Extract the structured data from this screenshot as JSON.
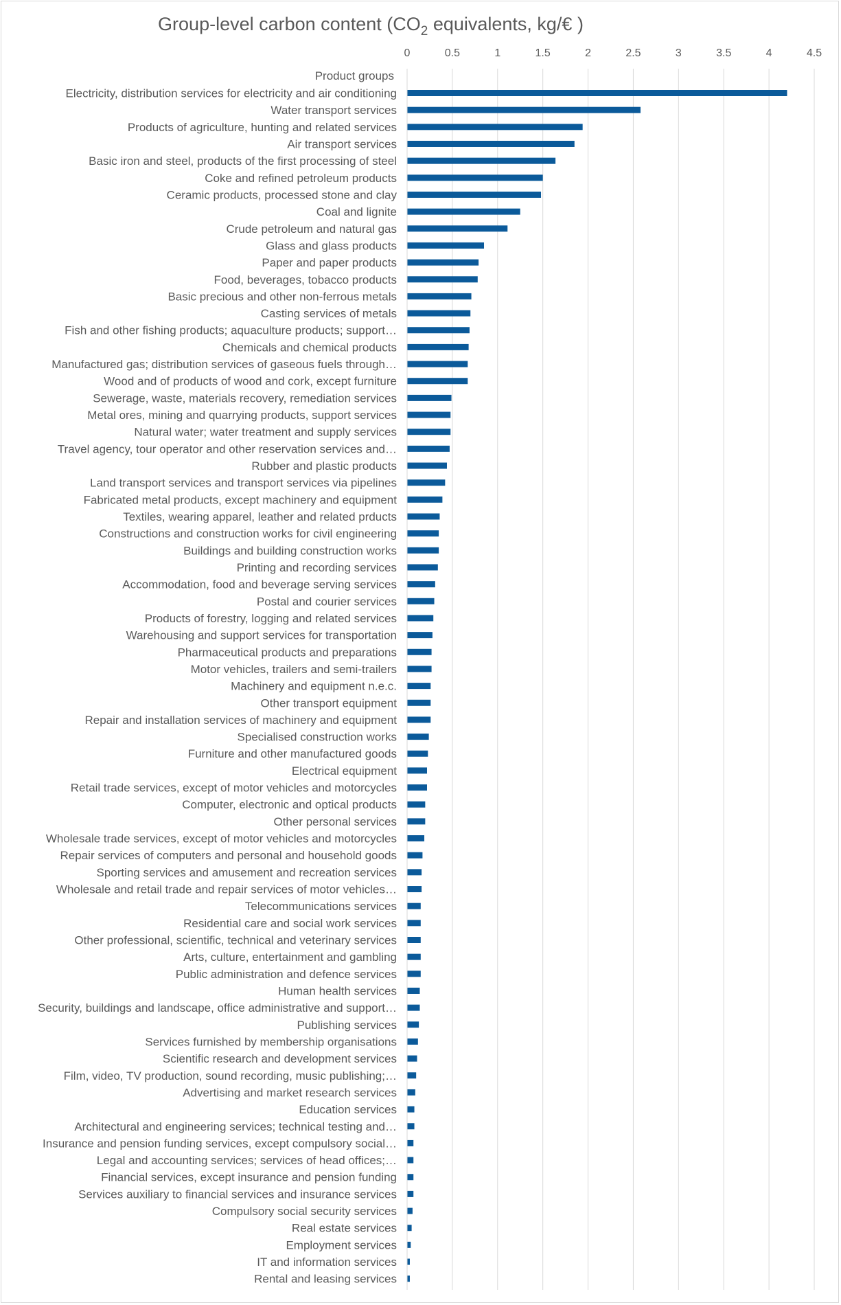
{
  "chart_data": {
    "type": "bar",
    "orientation": "horizontal",
    "title": "Group-level carbon content (CO",
    "title_subscript": "2",
    "title_suffix": " equivalents, kg/€ )",
    "category_header": "Product groups",
    "xlim": [
      0,
      4.5
    ],
    "x_ticks": [
      "0",
      "0.5",
      "1",
      "1.5",
      "2",
      "2.5",
      "3",
      "3.5",
      "4",
      "4.5"
    ],
    "grid": true,
    "legend": "none",
    "colors": {
      "bar": "#0b5a9a",
      "grid": "#d9d9d9",
      "text": "#595959"
    },
    "categories": [
      "Electricity, distribution services for electricity and air conditioning",
      "Water transport services",
      "Products of agriculture, hunting and related services",
      "Air transport services",
      "Basic iron and steel, products of the first processing of steel",
      "Coke and refined petroleum products",
      "Ceramic products, processed stone and clay",
      "Coal and lignite",
      "Crude petroleum and natural gas",
      "Glass and glass products",
      "Paper and paper products",
      "Food, beverages, tobacco products",
      "Basic precious and other non-ferrous metals",
      "Casting services of metals",
      "Fish and other fishing products; aquaculture products; support…",
      "Chemicals and chemical products",
      "Manufactured gas; distribution services of gaseous fuels through…",
      "Wood and of products of wood and cork, except furniture",
      "Sewerage, waste, materials recovery, remediation services",
      "Metal ores, mining and quarrying products, support services",
      "Natural water; water treatment and supply services",
      "Travel agency, tour operator and other reservation services and…",
      "Rubber and plastic products",
      "Land transport services and transport services via pipelines",
      "Fabricated metal products, except machinery and equipment",
      "Textiles, wearing apparel, leather and related prducts",
      "Constructions and construction works for civil engineering",
      "Buildings and building construction works",
      "Printing and recording services",
      "Accommodation, food and beverage serving services",
      "Postal and courier services",
      "Products of forestry, logging and related services",
      "Warehousing and support services for transportation",
      "Pharmaceutical products and preparations",
      "Motor vehicles, trailers and semi-trailers",
      "Machinery and equipment n.e.c.",
      "Other transport equipment",
      "Repair and installation services of machinery and equipment",
      "Specialised construction works",
      "Furniture and other manufactured goods",
      "Electrical equipment",
      "Retail trade services, except of motor vehicles and motorcycles",
      "Computer, electronic and optical products",
      "Other personal services",
      "Wholesale trade services, except of motor vehicles and motorcycles",
      "Repair services of computers and personal and household goods",
      "Sporting services and amusement and recreation services",
      "Wholesale and retail trade and repair services of motor vehicles…",
      "Telecommunications services",
      "Residential care and social work services",
      "Other professional, scientific, technical and veterinary services",
      "Arts, culture, entertainment and gambling",
      "Public administration and defence services",
      "Human health services",
      "Security, buildings and landscape, office administrative and support…",
      "Publishing services",
      "Services furnished by membership organisations",
      "Scientific research and development services",
      "Film, video, TV production, sound recording, music publishing;…",
      "Advertising and market research services",
      "Education services",
      "Architectural and engineering services; technical testing and…",
      "Insurance and pension funding services, except compulsory social…",
      "Legal and accounting services; services of head offices;…",
      "Financial services, except insurance and pension funding",
      "Services auxiliary to financial services and insurance services",
      "Compulsory social security services",
      "Real estate services",
      "Employment services",
      "IT and information services",
      "Rental and leasing services"
    ],
    "values": [
      4.2,
      2.58,
      1.94,
      1.85,
      1.64,
      1.5,
      1.48,
      1.25,
      1.11,
      0.85,
      0.79,
      0.78,
      0.71,
      0.7,
      0.69,
      0.68,
      0.67,
      0.67,
      0.49,
      0.48,
      0.48,
      0.47,
      0.44,
      0.42,
      0.39,
      0.36,
      0.35,
      0.35,
      0.34,
      0.31,
      0.3,
      0.29,
      0.28,
      0.27,
      0.27,
      0.26,
      0.26,
      0.26,
      0.24,
      0.23,
      0.22,
      0.22,
      0.2,
      0.2,
      0.19,
      0.17,
      0.16,
      0.16,
      0.15,
      0.15,
      0.15,
      0.15,
      0.15,
      0.14,
      0.14,
      0.13,
      0.12,
      0.11,
      0.1,
      0.09,
      0.08,
      0.08,
      0.07,
      0.07,
      0.07,
      0.07,
      0.06,
      0.05,
      0.04,
      0.03,
      0.03
    ]
  }
}
